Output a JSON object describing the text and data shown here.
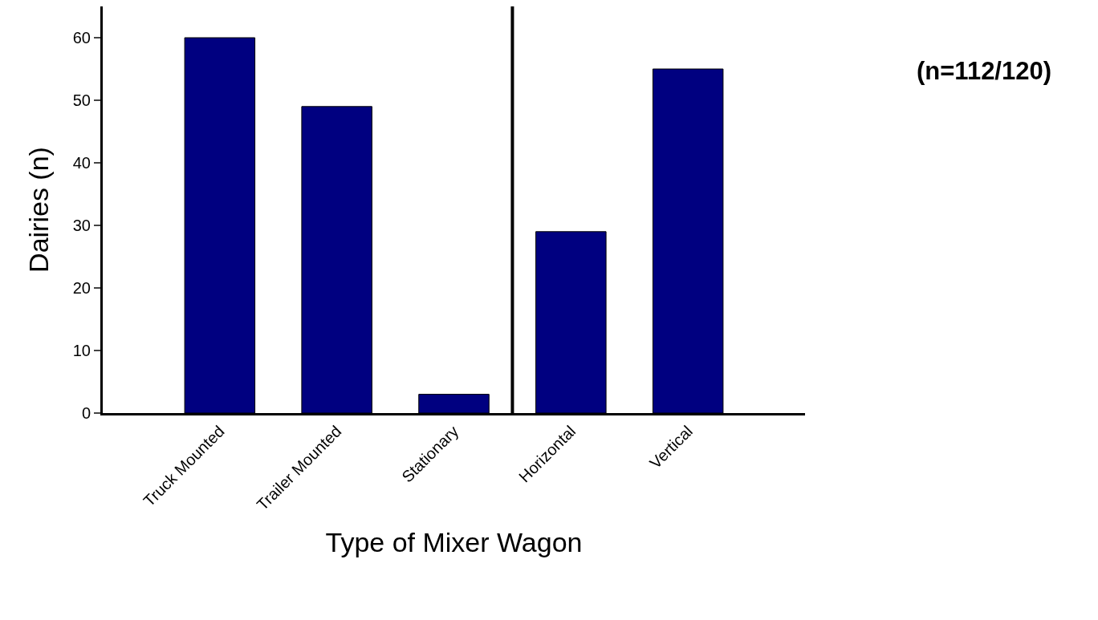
{
  "chart_data": {
    "type": "bar",
    "xlabel": "Type of Mixer Wagon",
    "ylabel": "Dairies (n)",
    "categories": [
      "Truck Mounted",
      "Trailer Mounted",
      "Stationary",
      "Horizontal",
      "Vertical"
    ],
    "values": [
      60,
      49,
      3,
      29,
      55
    ],
    "color": "#000080",
    "ylim": [
      0,
      65
    ],
    "yticks": [
      0,
      10,
      20,
      30,
      40,
      50,
      60
    ],
    "legend": false,
    "annotations": [
      "(n=112/120)"
    ]
  }
}
